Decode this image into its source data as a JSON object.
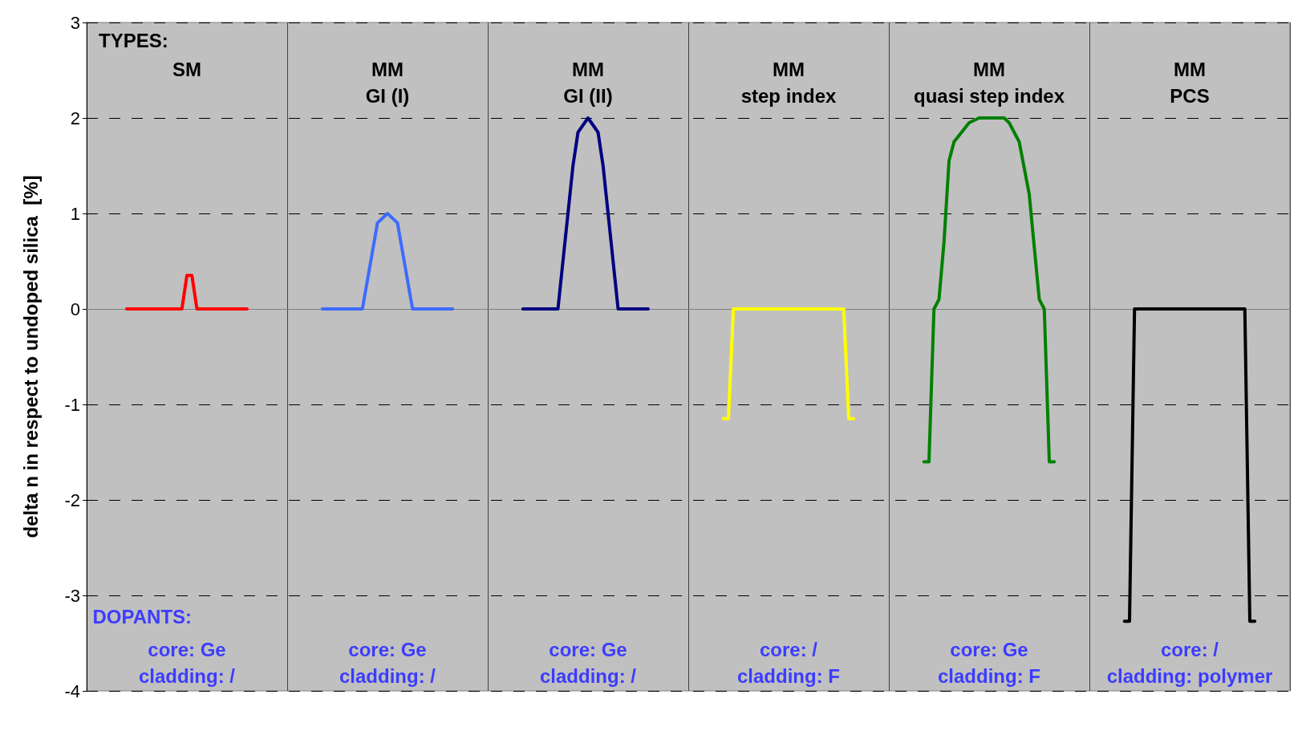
{
  "chart_data": {
    "type": "line",
    "ylabel": "delta n in respect to undoped silica  [%]",
    "categories": [
      null,
      null,
      null,
      null,
      null,
      null,
      null,
      null,
      null,
      null,
      null,
      null,
      null,
      null,
      null,
      null,
      null,
      null,
      null,
      null,
      null,
      null,
      null,
      null,
      null,
      null,
      null,
      null,
      null,
      null,
      null,
      null,
      null,
      null,
      null,
      null,
      null,
      null,
      null,
      null,
      null,
      null,
      null,
      null,
      null,
      null,
      null,
      null,
      null,
      null,
      null,
      null,
      null,
      null,
      null,
      null,
      null,
      null,
      null,
      null,
      null,
      null,
      null,
      null,
      null,
      null,
      null,
      null,
      null,
      null,
      null,
      null,
      null,
      null,
      null,
      null,
      null,
      null,
      null,
      null,
      null,
      null,
      null,
      null,
      null,
      null,
      null,
      null,
      null,
      null,
      null,
      null,
      null,
      null,
      null,
      null,
      null,
      null,
      null,
      null,
      null,
      null,
      null,
      null,
      null,
      null,
      null,
      null,
      null,
      null,
      null,
      null,
      null,
      null,
      null,
      null,
      null,
      null,
      null,
      null,
      null,
      null,
      null,
      null,
      null,
      null,
      null,
      null,
      null,
      null,
      null,
      null,
      null,
      null,
      null,
      null,
      null,
      null,
      null,
      null,
      null,
      null,
      null,
      null,
      null,
      null,
      null,
      null,
      null,
      null,
      null,
      null,
      null,
      null,
      null,
      null,
      null,
      null,
      null,
      null,
      null,
      null,
      null,
      null,
      null,
      null,
      null,
      null,
      null,
      null,
      null,
      null,
      null,
      null,
      null,
      null,
      null,
      null,
      null,
      null,
      null,
      null,
      null,
      null,
      null,
      null,
      null,
      null,
      null,
      null,
      null,
      null,
      null,
      null,
      null,
      null,
      null,
      null,
      null,
      null,
      null,
      null,
      null,
      null,
      null,
      null,
      null,
      null,
      null,
      null,
      null,
      null,
      null,
      null,
      null,
      null,
      null,
      null,
      null,
      null,
      null,
      null,
      null,
      null,
      null,
      null,
      null,
      null,
      null,
      null,
      null,
      null,
      null,
      null,
      null,
      null,
      null,
      null,
      null,
      null,
      null
    ],
    "ylim": [
      -4,
      3
    ],
    "yticks": [
      -4,
      -3,
      -2,
      -1,
      0,
      1,
      2,
      3
    ],
    "grid": true,
    "tick_labels": "y",
    "line_style": "solid",
    "series": [
      {
        "color": "#ff0000",
        "values": [
          null,
          null,
          null,
          null,
          null,
          null,
          null,
          null,
          0,
          null,
          null,
          null,
          null,
          null,
          null,
          null,
          null,
          null,
          null,
          0,
          0.35,
          0.35,
          0,
          null,
          null,
          null,
          null,
          null,
          null,
          null,
          null,
          null,
          0,
          null,
          null,
          null,
          null,
          null,
          null,
          null,
          null,
          null,
          null,
          null,
          null,
          null,
          null,
          null,
          null,
          null,
          null,
          null,
          null,
          null,
          null,
          null,
          null,
          null,
          null,
          null,
          null,
          null,
          null,
          null,
          null,
          null,
          null,
          null,
          null,
          null,
          null,
          null,
          null,
          null,
          null,
          null,
          null,
          null,
          null,
          null,
          null,
          null,
          null,
          null,
          null,
          null,
          null,
          null,
          null,
          null,
          null,
          null,
          null,
          null,
          null,
          null,
          null,
          null,
          null,
          null,
          null,
          null,
          null,
          null,
          null,
          null,
          null,
          null,
          null,
          null,
          null,
          null,
          null,
          null,
          null,
          null,
          null,
          null,
          null,
          null,
          null,
          null,
          null,
          null,
          null,
          null,
          null,
          null,
          null,
          null,
          null,
          null,
          null,
          null,
          null,
          null,
          null,
          null,
          null,
          null,
          null,
          null,
          null,
          null,
          null,
          null,
          null,
          null,
          null,
          null,
          null,
          null,
          null,
          null,
          null,
          null,
          null,
          null,
          null,
          null,
          null,
          null,
          null,
          null,
          null,
          null,
          null,
          null,
          null,
          null,
          null,
          null,
          null,
          null,
          null,
          null,
          null,
          null,
          null,
          null,
          null,
          null,
          null,
          null,
          null,
          null,
          null,
          null,
          null,
          null,
          null,
          null,
          null,
          null,
          null,
          null,
          null,
          null,
          null,
          null,
          null,
          null,
          null,
          null,
          null,
          null,
          null,
          null,
          null,
          null,
          null,
          null,
          null,
          null,
          null,
          null,
          null,
          null,
          null,
          null,
          null,
          null,
          null,
          null,
          null,
          null,
          null,
          null,
          null,
          null,
          null,
          null,
          null,
          null,
          null,
          null,
          null,
          null,
          null,
          null,
          null
        ]
      },
      {
        "color": "#3d6bff",
        "values": [
          null,
          null,
          null,
          null,
          null,
          null,
          null,
          null,
          null,
          null,
          null,
          null,
          null,
          null,
          null,
          null,
          null,
          null,
          null,
          null,
          null,
          null,
          null,
          null,
          null,
          null,
          null,
          null,
          null,
          null,
          null,
          null,
          null,
          null,
          null,
          null,
          null,
          null,
          null,
          null,
          null,
          null,
          null,
          null,
          null,
          null,
          null,
          0,
          null,
          null,
          null,
          null,
          null,
          null,
          null,
          0,
          0.3,
          0.6,
          0.9,
          null,
          1,
          null,
          0.9,
          0.6,
          0.3,
          0,
          null,
          null,
          null,
          null,
          null,
          null,
          null,
          0,
          null,
          null,
          null,
          null,
          null,
          null,
          null,
          null,
          null,
          null,
          null,
          null,
          null,
          null,
          null,
          null,
          null,
          null,
          null,
          null,
          null,
          null,
          null,
          null,
          null,
          null,
          null,
          null,
          null,
          null,
          null,
          null,
          null,
          null,
          null,
          null,
          null,
          null,
          null,
          null,
          null,
          null,
          null,
          null,
          null,
          null,
          null,
          null,
          null,
          null,
          null,
          null,
          null,
          null,
          null,
          null,
          null,
          null,
          null,
          null,
          null,
          null,
          null,
          null,
          null,
          null,
          null,
          null,
          null,
          null,
          null,
          null,
          null,
          null,
          null,
          null,
          null,
          null,
          null,
          null,
          null,
          null,
          null,
          null,
          null,
          null,
          null,
          null,
          null,
          null,
          null,
          null,
          null,
          null,
          null,
          null,
          null,
          null,
          null,
          null,
          null,
          null,
          null,
          null,
          null,
          null,
          null,
          null,
          null,
          null,
          null,
          null,
          null,
          null,
          null,
          null,
          null,
          null,
          null,
          null,
          null,
          null,
          null,
          null,
          null,
          null,
          null,
          null,
          null,
          null,
          null,
          null,
          null,
          null,
          null,
          null,
          null,
          null,
          null,
          null,
          null,
          null,
          null,
          null,
          null,
          null,
          null,
          null,
          null,
          null,
          null,
          null,
          null,
          null,
          null,
          null,
          null,
          null,
          null,
          null,
          null,
          null,
          null,
          null,
          null,
          null,
          null
        ]
      },
      {
        "color": "#000080",
        "values": [
          null,
          null,
          null,
          null,
          null,
          null,
          null,
          null,
          null,
          null,
          null,
          null,
          null,
          null,
          null,
          null,
          null,
          null,
          null,
          null,
          null,
          null,
          null,
          null,
          null,
          null,
          null,
          null,
          null,
          null,
          null,
          null,
          null,
          null,
          null,
          null,
          null,
          null,
          null,
          null,
          null,
          null,
          null,
          null,
          null,
          null,
          null,
          null,
          null,
          null,
          null,
          null,
          null,
          null,
          null,
          null,
          null,
          null,
          null,
          null,
          null,
          null,
          null,
          null,
          null,
          null,
          null,
          null,
          null,
          null,
          null,
          null,
          null,
          null,
          null,
          null,
          null,
          null,
          null,
          null,
          null,
          null,
          null,
          null,
          null,
          null,
          null,
          0,
          null,
          null,
          null,
          null,
          null,
          null,
          0,
          0.5,
          1,
          1.5,
          1.85,
          null,
          2,
          null,
          1.85,
          1.5,
          1,
          0.5,
          0,
          null,
          null,
          null,
          null,
          null,
          0,
          null,
          null,
          null,
          null,
          null,
          null,
          null,
          null,
          null,
          null,
          null,
          null,
          null,
          null,
          null,
          null,
          null,
          null,
          null,
          null,
          null,
          null,
          null,
          null,
          null,
          null,
          null,
          null,
          null,
          null,
          null,
          null,
          null,
          null,
          null,
          null,
          null,
          null,
          null,
          null,
          null,
          null,
          null,
          null,
          null,
          null,
          null,
          null,
          null,
          null,
          null,
          null,
          null,
          null,
          null,
          null,
          null,
          null,
          null,
          null,
          null,
          null,
          null,
          null,
          null,
          null,
          null,
          null,
          null,
          null,
          null,
          null,
          null,
          null,
          null,
          null,
          null,
          null,
          null,
          null,
          null,
          null,
          null,
          null,
          null,
          null,
          null,
          null,
          null,
          null,
          null,
          null,
          null,
          null,
          null,
          null,
          null,
          null,
          null,
          null,
          null,
          null,
          null,
          null,
          null,
          null,
          null,
          null,
          null,
          null,
          null,
          null,
          null,
          null,
          null,
          null,
          null,
          null,
          null,
          null,
          null,
          null,
          null,
          null,
          null,
          null,
          null,
          null
        ]
      },
      {
        "color": "#ffff00",
        "values": [
          null,
          null,
          null,
          null,
          null,
          null,
          null,
          null,
          null,
          null,
          null,
          null,
          null,
          null,
          null,
          null,
          null,
          null,
          null,
          null,
          null,
          null,
          null,
          null,
          null,
          null,
          null,
          null,
          null,
          null,
          null,
          null,
          null,
          null,
          null,
          null,
          null,
          null,
          null,
          null,
          null,
          null,
          null,
          null,
          null,
          null,
          null,
          null,
          null,
          null,
          null,
          null,
          null,
          null,
          null,
          null,
          null,
          null,
          null,
          null,
          null,
          null,
          null,
          null,
          null,
          null,
          null,
          null,
          null,
          null,
          null,
          null,
          null,
          null,
          null,
          null,
          null,
          null,
          null,
          null,
          null,
          null,
          null,
          null,
          null,
          null,
          null,
          null,
          null,
          null,
          null,
          null,
          null,
          null,
          null,
          null,
          null,
          null,
          null,
          null,
          null,
          null,
          null,
          null,
          null,
          null,
          null,
          null,
          null,
          null,
          null,
          null,
          null,
          null,
          null,
          null,
          null,
          null,
          null,
          null,
          null,
          null,
          null,
          null,
          null,
          null,
          null,
          -1.15,
          -1.15,
          0,
          null,
          null,
          null,
          null,
          null,
          null,
          null,
          null,
          null,
          null,
          null,
          null,
          null,
          null,
          null,
          null,
          null,
          null,
          null,
          null,
          null,
          0,
          -1.15,
          -1.15,
          null,
          null,
          null,
          null,
          null,
          null,
          null,
          null,
          null,
          null,
          null,
          null,
          null,
          null,
          null,
          null,
          null,
          null,
          null,
          null,
          null,
          null,
          null,
          null,
          null,
          null,
          null,
          null,
          null,
          null,
          null,
          null,
          null,
          null,
          null,
          null,
          null,
          null,
          null,
          null,
          null,
          null,
          null,
          null,
          null,
          null,
          null,
          null,
          null,
          null,
          null,
          null,
          null,
          null,
          null,
          null,
          null,
          null,
          null,
          null,
          null,
          null,
          null,
          null,
          null,
          null,
          null,
          null,
          null,
          null,
          null,
          null,
          null,
          null,
          null,
          null,
          null,
          null,
          null,
          null,
          null,
          null,
          null,
          null,
          null,
          null,
          null
        ]
      },
      {
        "color": "#008000",
        "values": [
          null,
          null,
          null,
          null,
          null,
          null,
          null,
          null,
          null,
          null,
          null,
          null,
          null,
          null,
          null,
          null,
          null,
          null,
          null,
          null,
          null,
          null,
          null,
          null,
          null,
          null,
          null,
          null,
          null,
          null,
          null,
          null,
          null,
          null,
          null,
          null,
          null,
          null,
          null,
          null,
          null,
          null,
          null,
          null,
          null,
          null,
          null,
          null,
          null,
          null,
          null,
          null,
          null,
          null,
          null,
          null,
          null,
          null,
          null,
          null,
          null,
          null,
          null,
          null,
          null,
          null,
          null,
          null,
          null,
          null,
          null,
          null,
          null,
          null,
          null,
          null,
          null,
          null,
          null,
          null,
          null,
          null,
          null,
          null,
          null,
          null,
          null,
          null,
          null,
          null,
          null,
          null,
          null,
          null,
          null,
          null,
          null,
          null,
          null,
          null,
          null,
          null,
          null,
          null,
          null,
          null,
          null,
          null,
          null,
          null,
          null,
          null,
          null,
          null,
          null,
          null,
          null,
          null,
          null,
          null,
          null,
          null,
          null,
          null,
          null,
          null,
          null,
          null,
          null,
          null,
          null,
          null,
          null,
          null,
          null,
          null,
          null,
          null,
          null,
          null,
          null,
          null,
          null,
          null,
          null,
          null,
          null,
          null,
          null,
          null,
          null,
          null,
          null,
          null,
          null,
          null,
          null,
          null,
          null,
          null,
          null,
          null,
          null,
          null,
          null,
          null,
          null,
          -1.6,
          -1.6,
          0,
          0.1,
          0.7,
          1.55,
          1.75,
          null,
          null,
          1.95,
          null,
          2,
          null,
          null,
          null,
          null,
          2,
          1.95,
          null,
          1.75,
          null,
          1.2,
          null,
          0.1,
          0,
          -1.6,
          -1.6,
          null,
          null,
          null,
          null,
          null,
          null,
          null,
          null,
          null,
          null,
          null,
          null,
          null,
          null,
          null,
          null,
          null,
          null,
          null,
          null,
          null,
          null,
          null,
          null,
          null,
          null,
          null,
          null,
          null,
          null,
          null,
          null,
          null,
          null,
          null,
          null,
          null,
          null,
          null,
          null,
          null,
          null,
          null,
          null,
          null,
          null,
          null
        ]
      },
      {
        "color": "#000000",
        "values": [
          null,
          null,
          null,
          null,
          null,
          null,
          null,
          null,
          null,
          null,
          null,
          null,
          null,
          null,
          null,
          null,
          null,
          null,
          null,
          null,
          null,
          null,
          null,
          null,
          null,
          null,
          null,
          null,
          null,
          null,
          null,
          null,
          null,
          null,
          null,
          null,
          null,
          null,
          null,
          null,
          null,
          null,
          null,
          null,
          null,
          null,
          null,
          null,
          null,
          null,
          null,
          null,
          null,
          null,
          null,
          null,
          null,
          null,
          null,
          null,
          null,
          null,
          null,
          null,
          null,
          null,
          null,
          null,
          null,
          null,
          null,
          null,
          null,
          null,
          null,
          null,
          null,
          null,
          null,
          null,
          null,
          null,
          null,
          null,
          null,
          null,
          null,
          null,
          null,
          null,
          null,
          null,
          null,
          null,
          null,
          null,
          null,
          null,
          null,
          null,
          null,
          null,
          null,
          null,
          null,
          null,
          null,
          null,
          null,
          null,
          null,
          null,
          null,
          null,
          null,
          null,
          null,
          null,
          null,
          null,
          null,
          null,
          null,
          null,
          null,
          null,
          null,
          null,
          null,
          null,
          null,
          null,
          null,
          null,
          null,
          null,
          null,
          null,
          null,
          null,
          null,
          null,
          null,
          null,
          null,
          null,
          null,
          null,
          null,
          null,
          null,
          null,
          null,
          null,
          null,
          null,
          null,
          null,
          null,
          null,
          null,
          null,
          null,
          null,
          null,
          null,
          null,
          null,
          null,
          null,
          null,
          null,
          null,
          null,
          null,
          null,
          null,
          null,
          null,
          null,
          null,
          null,
          null,
          null,
          null,
          null,
          null,
          null,
          null,
          null,
          null,
          null,
          null,
          null,
          null,
          null,
          null,
          null,
          null,
          null,
          null,
          null,
          null,
          null,
          null,
          null,
          null,
          -3.27,
          -3.27,
          0,
          null,
          null,
          null,
          null,
          null,
          null,
          null,
          null,
          null,
          null,
          null,
          null,
          null,
          null,
          null,
          null,
          null,
          null,
          null,
          null,
          null,
          0,
          -3.27,
          -3.27,
          null,
          null,
          null,
          null,
          null,
          null,
          null
        ]
      }
    ],
    "annotations": [
      "TYPES:",
      "SM",
      "MM\nGI (I)",
      "MM\nGI (II)",
      "MM\nstep index",
      "MM\nquasi step index",
      "MM\nPCS",
      "DOPANTS:",
      "core: Ge\ncladding: /",
      "core: Ge\ncladding: /",
      "core: Ge\ncladding: /",
      "core: /\ncladding: F",
      "core: Ge\ncladding: F",
      "core: /\ncladding: polymer"
    ]
  }
}
